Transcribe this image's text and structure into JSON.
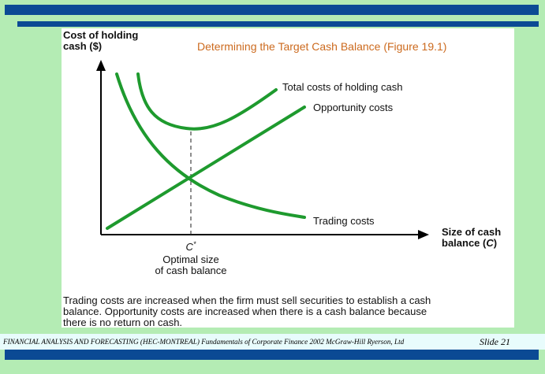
{
  "slide": {
    "title": "Determining the Target Cash Balance (Figure 19.1)",
    "caption_lines": [
      "Trading costs are increased when the firm must sell securities to establish a cash",
      "balance. Opportunity costs are increased when there is a cash balance because",
      "there is no return on cash."
    ],
    "footer_source": "FINANCIAL ANALYSIS AND FORECASTING (HEC-MONTREAL) Fundamentals of Corporate Finance 2002 McGraw-Hill Ryerson, Ltd",
    "footer_slide": "Slide 21"
  },
  "diagram": {
    "y_axis_label_lines": [
      "Cost of holding",
      "cash ($)"
    ],
    "x_axis_label_lines": [
      "Size of cash",
      "balance (C)"
    ],
    "optimum_marker": "C*",
    "optimum_label_lines": [
      "Optimal size",
      "of cash balance"
    ],
    "curve_labels": {
      "total": "Total costs of holding cash",
      "opportunity": "Opportunity costs",
      "trading": "Trading costs"
    }
  },
  "colors": {
    "curves": "#1e9a2e",
    "title": "#cc6a1e",
    "banner": "#0b4a94",
    "background": "#b4ecb4"
  }
}
